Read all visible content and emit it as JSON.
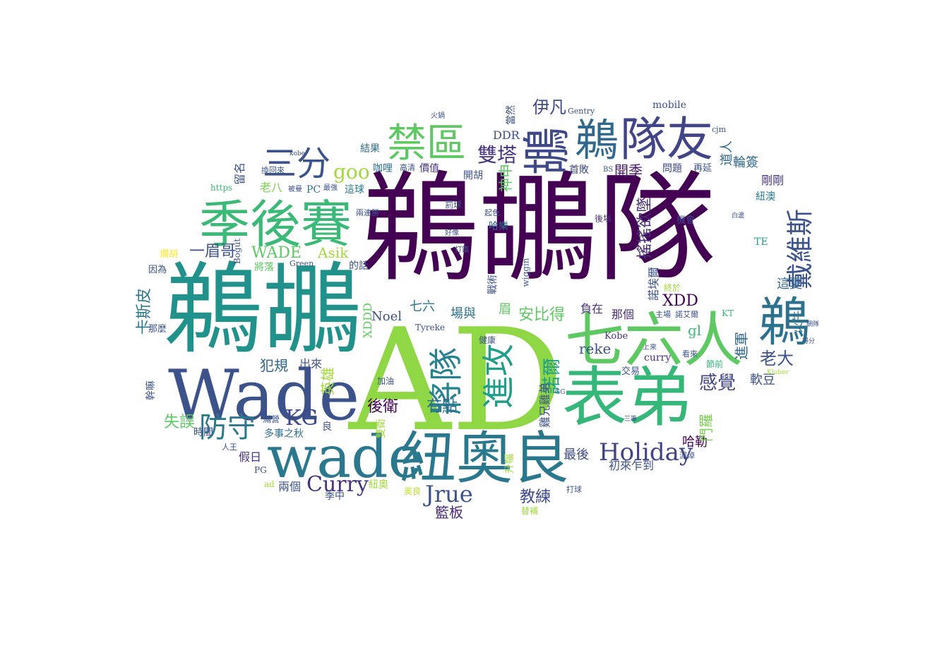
{
  "words": [
    {
      "text": "鵜鶘隊",
      "color": "#440154"
    },
    {
      "text": "AD",
      "color": "#8fd744"
    },
    {
      "text": "鵜鶘",
      "color": "#21918c"
    },
    {
      "text": "Wade",
      "color": "#3b528b"
    },
    {
      "text": "wade",
      "color": "#2a788e"
    },
    {
      "text": "紐奧良",
      "color": "#2a788e"
    },
    {
      "text": "表弟",
      "color": "#35b779"
    },
    {
      "text": "七六人",
      "color": "#5ec962"
    },
    {
      "text": "季後賽",
      "color": "#3aba76"
    },
    {
      "text": "隊友",
      "color": "#414487"
    },
    {
      "text": "鵜",
      "color": "#31688e"
    },
    {
      "text": "鶘",
      "color": "#3e4989"
    },
    {
      "text": "鵜",
      "color": "#2c728e"
    },
    {
      "text": "禁區",
      "color": "#5ec962"
    },
    {
      "text": "三分",
      "color": "#3b528b"
    },
    {
      "text": "將隊",
      "color": "#26828e"
    },
    {
      "text": "進攻",
      "color": "#1f9e89"
    },
    {
      "text": "防守",
      "color": "#2a788e"
    },
    {
      "text": "Holiday",
      "color": "#414487"
    },
    {
      "text": "Curry",
      "color": "#46327e"
    },
    {
      "text": "Jrue",
      "color": "#3b528b"
    },
    {
      "text": "KG",
      "color": "#3e4989"
    },
    {
      "text": "goo",
      "color": "#9fda3a"
    },
    {
      "text": "戴維斯",
      "color": "#3b528b"
    },
    {
      "text": "雙塔",
      "color": "#46327e"
    },
    {
      "text": "諾爾",
      "color": "#1f9e89"
    },
    {
      "text": "搖搖欲墜",
      "color": "#472c7a"
    },
    {
      "text": "感覺",
      "color": "#414487"
    },
    {
      "text": "老大",
      "color": "#3b528b"
    },
    {
      "text": "安比得",
      "color": "#5ec962"
    },
    {
      "text": "伊凡",
      "color": "#3e4989"
    },
    {
      "text": "開季",
      "color": "#48186a"
    },
    {
      "text": "XDD",
      "color": "#440154"
    },
    {
      "text": "WADE",
      "color": "#5ec962"
    },
    {
      "text": "Asik",
      "color": "#a0da39"
    },
    {
      "text": "一眉哥",
      "color": "#3b528b"
    },
    {
      "text": "卡斯皮",
      "color": "#2a788e"
    },
    {
      "text": "後衛",
      "color": "#440154"
    },
    {
      "text": "有點",
      "color": "#2e6e8e"
    },
    {
      "text": "教練",
      "color": "#3e4989"
    },
    {
      "text": "籃板",
      "color": "#482878"
    },
    {
      "text": "失誤",
      "color": "#5ec962"
    },
    {
      "text": "犯規",
      "color": "#31688e"
    },
    {
      "text": "最後",
      "color": "#3e4989"
    },
    {
      "text": "哈勒",
      "color": "#440154"
    },
    {
      "text": "門羅",
      "color": "#7ad151"
    },
    {
      "text": "進軍",
      "color": "#31688e"
    },
    {
      "text": "軟豆",
      "color": "#3b528b"
    },
    {
      "text": "火牛",
      "color": "#2e6e8e"
    },
    {
      "text": "這夏",
      "color": "#31688e"
    },
    {
      "text": "剛剛",
      "color": "#46327e"
    },
    {
      "text": "紐澳",
      "color": "#2a788e"
    },
    {
      "text": "輪簽",
      "color": "#31688e"
    },
    {
      "text": "道人",
      "color": "#31688e"
    },
    {
      "text": "Noel",
      "color": "#3b528b"
    },
    {
      "text": "七六",
      "color": "#2a788e"
    },
    {
      "text": "場與",
      "color": "#2c728e"
    },
    {
      "text": "眉",
      "color": "#5ec962"
    },
    {
      "text": "負在",
      "color": "#46327e"
    },
    {
      "text": "那個",
      "color": "#472c7a"
    },
    {
      "text": "reke",
      "color": "#3b528b"
    },
    {
      "text": "gl",
      "color": "#3aba76"
    },
    {
      "text": "Kobe",
      "color": "#46327e"
    },
    {
      "text": "curry",
      "color": "#46327e"
    },
    {
      "text": "交易",
      "color": "#3b528b"
    },
    {
      "text": "初來乍到",
      "color": "#3b528b"
    },
    {
      "text": "雞兄雞弟",
      "color": "#3b528b"
    },
    {
      "text": "首敗",
      "color": "#3e4989"
    },
    {
      "text": "問題",
      "color": "#3e4989"
    },
    {
      "text": "再延",
      "color": "#3b528b"
    },
    {
      "text": "機會",
      "color": "#3e4989"
    },
    {
      "text": "後場",
      "color": "#46327e"
    },
    {
      "text": "TE",
      "color": "#1f9e89"
    },
    {
      "text": "諾埃爾",
      "color": "#3b528b"
    },
    {
      "text": "主場",
      "color": "#3b528b"
    },
    {
      "text": "諾艾爾",
      "color": "#3b528b"
    },
    {
      "text": "看來",
      "color": "#3b528b"
    },
    {
      "text": "節前",
      "color": "#35b779"
    },
    {
      "text": "上來",
      "color": "#3b528b"
    },
    {
      "text": "終於",
      "color": "#a0da39"
    },
    {
      "text": "KT",
      "color": "#35b779"
    },
    {
      "text": "DDR",
      "color": "#3b528b"
    },
    {
      "text": "當然",
      "color": "#3b528b"
    },
    {
      "text": "神申",
      "color": "#5ec962"
    },
    {
      "text": "開胡",
      "color": "#3b528b"
    },
    {
      "text": "價值",
      "color": "#46327e"
    },
    {
      "text": "咖哩",
      "color": "#2e6e8e"
    },
    {
      "text": "高清",
      "color": "#3b528b"
    },
    {
      "text": "結果",
      "color": "#2e6e8e"
    },
    {
      "text": "這球",
      "color": "#2a788e"
    },
    {
      "text": "PC",
      "color": "#2e6e8e"
    },
    {
      "text": "老八",
      "color": "#7ad151"
    },
    {
      "text": "留名",
      "color": "#3b528b"
    },
    {
      "text": "https",
      "color": "#3aba76"
    },
    {
      "text": "被曼",
      "color": "#3e4989"
    },
    {
      "text": "最強",
      "color": "#3b528b"
    },
    {
      "text": "換回來",
      "color": "#3b528b"
    },
    {
      "text": "兩連勝",
      "color": "#3b528b"
    },
    {
      "text": "哈樂",
      "color": "#2e6e8e"
    },
    {
      "text": "罰球",
      "color": "#3b528b"
    },
    {
      "text": "好像",
      "color": "#3b528b"
    },
    {
      "text": "起色",
      "color": "#3b528b"
    },
    {
      "text": "戰術",
      "color": "#3b528b"
    },
    {
      "text": "wiggin",
      "color": "#3b528b"
    },
    {
      "text": "打鐵",
      "color": "#3b528b"
    },
    {
      "text": "Tyreke",
      "color": "#3b528b"
    },
    {
      "text": "的話",
      "color": "#3b528b"
    },
    {
      "text": "將落",
      "color": "#5ec962"
    },
    {
      "text": "Green",
      "color": "#3b528b"
    },
    {
      "text": "Bogut",
      "color": "#3b528b"
    },
    {
      "text": "因為",
      "color": "#3b528b"
    },
    {
      "text": "爛胡",
      "color": "#fde725"
    },
    {
      "text": "XDDD",
      "color": "#5ec962"
    },
    {
      "text": "出來",
      "color": "#3b528b"
    },
    {
      "text": "英雄",
      "color": "#a0da39"
    },
    {
      "text": "多事之秋",
      "color": "#2e6e8e"
    },
    {
      "text": "良",
      "color": "#3b528b"
    },
    {
      "text": "滿營",
      "color": "#3b528b"
    },
    {
      "text": "時間",
      "color": "#3b528b"
    },
    {
      "text": "假日",
      "color": "#46327e"
    },
    {
      "text": "兩個",
      "color": "#3b528b"
    },
    {
      "text": "季中",
      "color": "#3b528b"
    },
    {
      "text": "紐奧",
      "color": "#a0da39"
    },
    {
      "text": "奧良",
      "color": "#bddf26"
    },
    {
      "text": "雙衛",
      "color": "#a0da39"
    },
    {
      "text": "加油",
      "color": "#3b528b"
    },
    {
      "text": "健康",
      "color": "#3b528b"
    },
    {
      "text": "升幅",
      "color": "#a0da39"
    },
    {
      "text": "替補",
      "color": "#a0da39"
    },
    {
      "text": "打球",
      "color": "#3b528b"
    },
    {
      "text": "Gentry",
      "color": "#3b528b"
    },
    {
      "text": "mobile",
      "color": "#3b528b"
    },
    {
      "text": "火鍋",
      "color": "#3b528b"
    },
    {
      "text": "幹嘛",
      "color": "#3b528b"
    },
    {
      "text": "那麼",
      "color": "#3b528b"
    },
    {
      "text": "PG",
      "color": "#3b528b"
    },
    {
      "text": "ad",
      "color": "#a0da39"
    },
    {
      "text": "人王",
      "color": "#3b528b"
    },
    {
      "text": "cjm",
      "color": "#3b528b"
    },
    {
      "text": "kobe",
      "color": "#3b528b"
    },
    {
      "text": "BS",
      "color": "#3b528b"
    },
    {
      "text": "泥淖",
      "color": "#3b528b"
    },
    {
      "text": "得分",
      "color": "#3b528b"
    },
    {
      "text": "網隊",
      "color": "#3b528b"
    },
    {
      "text": "Kluber",
      "color": "#a0da39"
    },
    {
      "text": "白邊",
      "color": "#3b528b"
    },
    {
      "text": "三筆",
      "color": "#3b528b"
    },
    {
      "text": "GG",
      "color": "#3b528b"
    }
  ]
}
